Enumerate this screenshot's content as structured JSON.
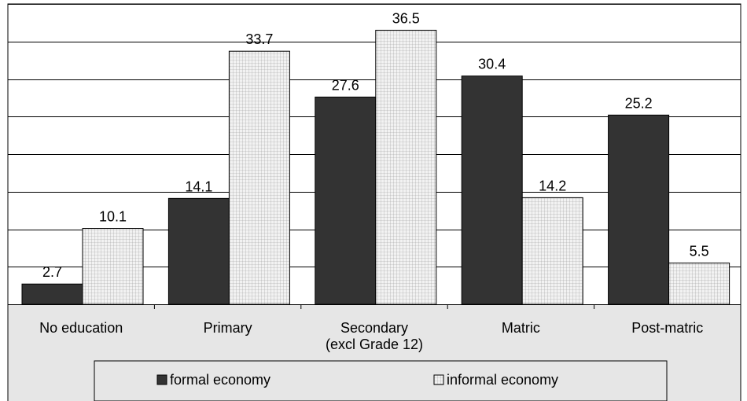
{
  "chart_data": {
    "type": "bar",
    "categories": [
      "No education",
      "Primary",
      "Secondary\n(excl Grade 12)",
      "Matric",
      "Post-matric"
    ],
    "series": [
      {
        "name": "formal economy",
        "values": [
          2.7,
          14.1,
          27.6,
          30.4,
          25.2
        ],
        "color": "#333333"
      },
      {
        "name": "informal economy",
        "values": [
          10.1,
          33.7,
          36.5,
          14.2,
          5.5
        ],
        "color": "#e2e2e2",
        "pattern": "grid"
      }
    ],
    "data_labels": true,
    "ylim": [
      0,
      40
    ],
    "y_gridlines": [
      5,
      10,
      15,
      20,
      25,
      30,
      35,
      40
    ],
    "y_axis_labels_shown": false,
    "grid": true,
    "legend_position": "bottom-center",
    "plot_background": "#ffffff",
    "lower_area_background": "#e6e6e6"
  }
}
